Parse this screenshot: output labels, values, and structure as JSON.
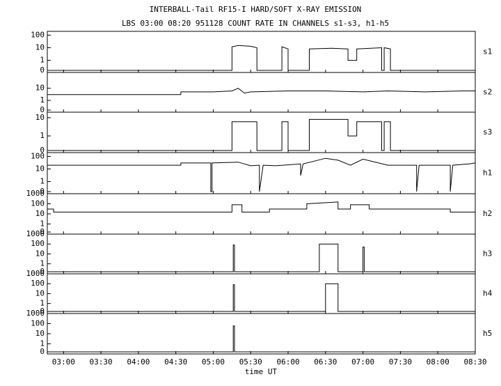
{
  "chart_data": {
    "type": "line",
    "log_scale": true,
    "color": "#000000",
    "title": "INTERBALL-Tail RF15-I HARD/SOFT X-RAY EMISSION",
    "subtitle": "LBS 03:00 08:20 951128  COUNT RATE IN CHANNELS s1-s3, h1-h5",
    "xlabel": "time UT",
    "xlim": [
      167,
      510
    ],
    "xticks": [
      {
        "value": 180,
        "label": "03:00"
      },
      {
        "value": 210,
        "label": "03:30"
      },
      {
        "value": 240,
        "label": "04:00"
      },
      {
        "value": 270,
        "label": "04:30"
      },
      {
        "value": 300,
        "label": "05:00"
      },
      {
        "value": 330,
        "label": "05:30"
      },
      {
        "value": 360,
        "label": "06:00"
      },
      {
        "value": 390,
        "label": "06:30"
      },
      {
        "value": 420,
        "label": "07:00"
      },
      {
        "value": 450,
        "label": "07:30"
      },
      {
        "value": 480,
        "label": "08:00"
      },
      {
        "value": 510,
        "label": "08:30"
      }
    ],
    "panels": [
      {
        "name": "s1",
        "ylim": [
          0,
          200
        ],
        "yticks": [
          0,
          1,
          10,
          100
        ],
        "x": [
          167,
          315,
          315,
          320,
          330,
          335,
          335,
          355,
          355,
          360,
          360,
          377,
          377,
          395,
          408,
          408,
          415,
          415,
          435,
          435,
          437,
          437,
          442,
          442,
          510
        ],
        "values": [
          0,
          0,
          12,
          15,
          13,
          10,
          0,
          0,
          12,
          8,
          0,
          0,
          8,
          9,
          8,
          1,
          1,
          8,
          10,
          0,
          0,
          10,
          8,
          0,
          0
        ]
      },
      {
        "name": "s2",
        "ylim": [
          0,
          200
        ],
        "yticks": [
          0,
          1,
          10
        ],
        "x": [
          167,
          274,
          274,
          300,
          315,
          320,
          325,
          330,
          360,
          390,
          420,
          440,
          470,
          500,
          510
        ],
        "values": [
          3,
          3,
          5,
          5,
          6,
          10,
          4,
          5,
          6,
          6,
          5,
          6,
          5,
          6,
          6
        ]
      },
      {
        "name": "s3",
        "ylim": [
          0,
          20
        ],
        "yticks": [
          0,
          1,
          10
        ],
        "x": [
          167,
          315,
          315,
          335,
          335,
          355,
          355,
          360,
          360,
          377,
          377,
          408,
          408,
          415,
          415,
          435,
          435,
          437,
          437,
          442,
          442,
          510
        ],
        "values": [
          0,
          0,
          6,
          6,
          0,
          0,
          6,
          6,
          0,
          0,
          8,
          8,
          1,
          1,
          6,
          6,
          0,
          0,
          6,
          6,
          0,
          0
        ]
      },
      {
        "name": "h1",
        "ylim": [
          0,
          200
        ],
        "yticks": [
          0,
          1,
          10,
          100
        ],
        "x": [
          167,
          274,
          274,
          298,
          298,
          299,
          299,
          320,
          330,
          337,
          337,
          340,
          350,
          370,
          370,
          372,
          390,
          400,
          410,
          420,
          440,
          460,
          463,
          463,
          465,
          490,
          490,
          492,
          505,
          510
        ],
        "values": [
          20,
          20,
          30,
          30,
          0,
          0,
          30,
          35,
          18,
          20,
          0,
          20,
          18,
          25,
          3,
          25,
          70,
          50,
          20,
          60,
          20,
          20,
          20,
          0,
          20,
          20,
          0,
          20,
          25,
          30
        ]
      },
      {
        "name": "h2",
        "ylim": [
          0,
          1000
        ],
        "yticks": [
          0,
          1,
          10,
          100,
          1000
        ],
        "x": [
          167,
          172,
          172,
          315,
          315,
          323,
          323,
          345,
          345,
          375,
          375,
          400,
          400,
          410,
          410,
          425,
          425,
          440,
          440,
          490,
          490,
          510
        ],
        "values": [
          30,
          30,
          15,
          15,
          80,
          80,
          15,
          15,
          30,
          30,
          100,
          150,
          30,
          30,
          80,
          80,
          30,
          30,
          30,
          30,
          15,
          15
        ]
      },
      {
        "name": "h3",
        "ylim": [
          0,
          1000
        ],
        "yticks": [
          0,
          1,
          10,
          100,
          1000
        ],
        "x": [
          167,
          316,
          316,
          317,
          317,
          385,
          385,
          400,
          400,
          420,
          420,
          421,
          421,
          510
        ],
        "values": [
          0,
          0,
          80,
          80,
          0,
          0,
          100,
          100,
          0,
          0,
          50,
          50,
          0,
          0
        ]
      },
      {
        "name": "h4",
        "ylim": [
          0,
          1000
        ],
        "yticks": [
          0,
          1,
          10,
          100,
          1000
        ],
        "x": [
          167,
          316,
          316,
          317,
          317,
          390,
          390,
          400,
          400,
          510
        ],
        "values": [
          0,
          0,
          80,
          80,
          0,
          0,
          100,
          100,
          0,
          0
        ]
      },
      {
        "name": "h5",
        "ylim": [
          0,
          1000
        ],
        "yticks": [
          0,
          1,
          10,
          100,
          1000
        ],
        "x": [
          167,
          316,
          316,
          317,
          317,
          510
        ],
        "values": [
          0,
          0,
          60,
          60,
          0,
          0
        ]
      }
    ]
  }
}
